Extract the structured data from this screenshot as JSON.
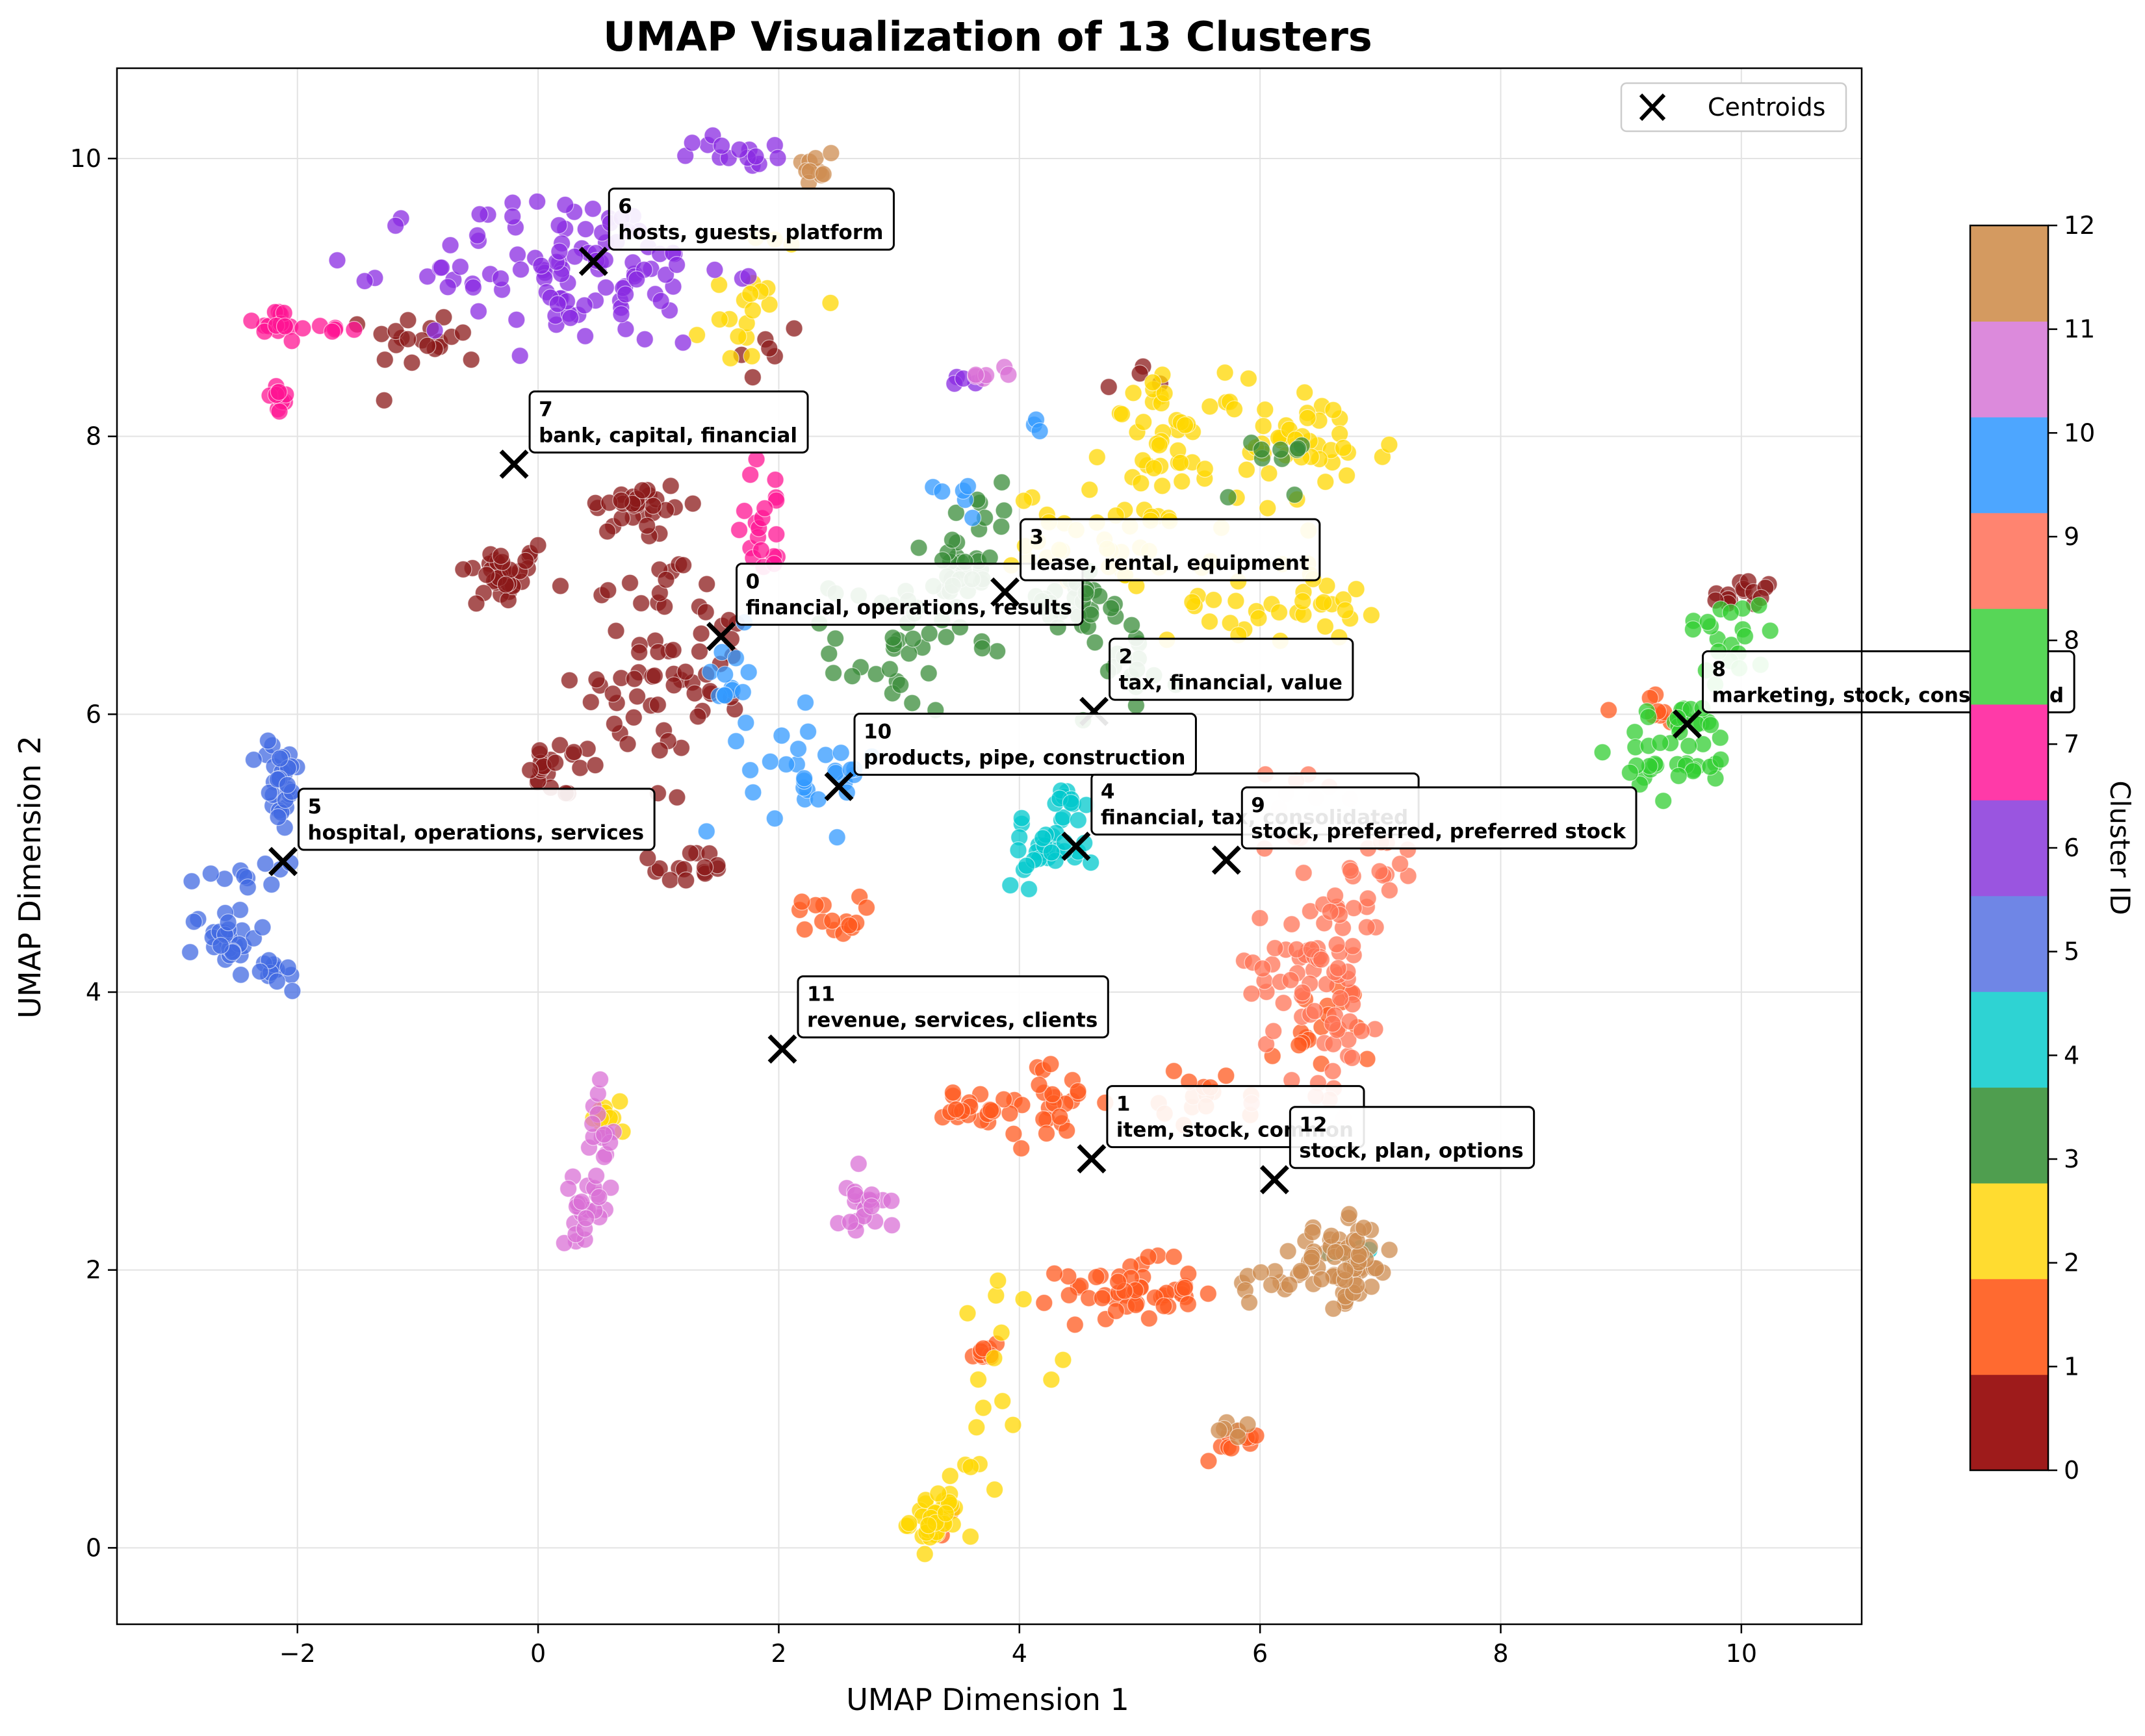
{
  "chart_data": {
    "type": "scatter",
    "title": "UMAP Visualization of 13 Clusters",
    "xlabel": "UMAP Dimension 1",
    "ylabel": "UMAP Dimension 2",
    "xlim": [
      -3.5,
      11.0
    ],
    "ylim": [
      -0.55,
      10.65
    ],
    "xticks": [
      -2,
      0,
      2,
      4,
      6,
      8,
      10
    ],
    "yticks": [
      0,
      2,
      4,
      6,
      8,
      10
    ],
    "xtick_labels": [
      "−2",
      "0",
      "2",
      "4",
      "6",
      "8",
      "10"
    ],
    "ytick_labels": [
      "0",
      "2",
      "4",
      "6",
      "8",
      "10"
    ],
    "grid": true,
    "legend": {
      "placement": "top-right",
      "entries": [
        "Centroids"
      ]
    },
    "colorbar": {
      "label": "Cluster ID",
      "ticks": [
        "0",
        "1",
        "2",
        "3",
        "4",
        "5",
        "6",
        "7",
        "8",
        "9",
        "10",
        "11",
        "12"
      ],
      "colors": [
        "#9e1b1b",
        "#ff6a30",
        "#ffdc30",
        "#4f9e4f",
        "#2ed3d3",
        "#6f86e6",
        "#9a55e0",
        "#ff3aa8",
        "#57d657",
        "#ff8470",
        "#4da6ff",
        "#dc8adc",
        "#d49a60"
      ]
    },
    "series": [
      {
        "cluster": 0,
        "color": "#8b1a1a",
        "blobs": [
          [
            -0.3,
            7.0,
            0.25,
            0.15,
            35
          ],
          [
            0.2,
            5.6,
            0.2,
            0.15,
            20
          ],
          [
            0.9,
            6.5,
            0.5,
            0.9,
            60
          ],
          [
            0.8,
            7.5,
            0.3,
            0.15,
            25
          ],
          [
            1.5,
            6.4,
            0.25,
            0.3,
            15
          ],
          [
            1.2,
            4.9,
            0.3,
            0.1,
            15
          ],
          [
            -0.9,
            8.7,
            0.35,
            0.15,
            20
          ],
          [
            1.9,
            8.6,
            0.2,
            0.2,
            6
          ],
          [
            10.0,
            6.85,
            0.2,
            0.1,
            15
          ],
          [
            5.0,
            8.4,
            0.2,
            0.1,
            4
          ]
        ]
      },
      {
        "cluster": 1,
        "color": "#ff5a1f",
        "blobs": [
          [
            4.9,
            1.85,
            0.4,
            0.15,
            50
          ],
          [
            3.7,
            1.4,
            0.1,
            0.1,
            10
          ],
          [
            3.4,
            0.2,
            0.1,
            0.1,
            8
          ],
          [
            4.2,
            3.2,
            0.35,
            0.2,
            30
          ],
          [
            3.6,
            3.15,
            0.25,
            0.1,
            15
          ],
          [
            5.6,
            3.25,
            0.3,
            0.15,
            15
          ],
          [
            2.4,
            4.55,
            0.2,
            0.1,
            15
          ],
          [
            5.8,
            0.75,
            0.2,
            0.1,
            10
          ],
          [
            6.5,
            3.7,
            0.3,
            0.3,
            20
          ],
          [
            9.2,
            6.05,
            0.25,
            0.1,
            8
          ]
        ]
      },
      {
        "cluster": 2,
        "color": "#ffd700",
        "blobs": [
          [
            3.3,
            0.2,
            0.15,
            0.15,
            35
          ],
          [
            5.3,
            8.0,
            0.4,
            0.3,
            45
          ],
          [
            6.4,
            7.9,
            0.5,
            0.3,
            40
          ],
          [
            4.8,
            7.25,
            0.6,
            0.25,
            40
          ],
          [
            6.1,
            6.8,
            0.6,
            0.2,
            35
          ],
          [
            1.8,
            9.0,
            0.3,
            0.4,
            20
          ],
          [
            0.6,
            3.1,
            0.1,
            0.15,
            10
          ],
          [
            3.9,
            1.5,
            0.3,
            0.4,
            12
          ],
          [
            3.6,
            0.7,
            0.1,
            0.3,
            6
          ]
        ]
      },
      {
        "cluster": 3,
        "color": "#3a8c3a",
        "blobs": [
          [
            3.0,
            6.5,
            0.4,
            0.35,
            40
          ],
          [
            3.5,
            7.0,
            0.2,
            0.25,
            25
          ],
          [
            4.4,
            6.8,
            0.35,
            0.15,
            25
          ],
          [
            4.9,
            6.4,
            0.3,
            0.3,
            20
          ],
          [
            6.1,
            7.9,
            0.25,
            0.25,
            10
          ],
          [
            3.8,
            7.5,
            0.2,
            0.15,
            8
          ]
        ]
      },
      {
        "cluster": 4,
        "color": "#00c8cc",
        "blobs": [
          [
            4.2,
            5.0,
            0.25,
            0.15,
            30
          ],
          [
            4.4,
            5.35,
            0.1,
            0.1,
            10
          ],
          [
            6.8,
            2.15,
            0.15,
            0.1,
            6
          ]
        ]
      },
      {
        "cluster": 5,
        "color": "#4169e1",
        "blobs": [
          [
            -2.15,
            5.5,
            0.12,
            0.25,
            30
          ],
          [
            -2.6,
            4.4,
            0.2,
            0.15,
            30
          ],
          [
            -2.15,
            4.15,
            0.12,
            0.1,
            12
          ],
          [
            -2.45,
            4.9,
            0.25,
            0.15,
            12
          ]
        ]
      },
      {
        "cluster": 6,
        "color": "#8a2be2",
        "blobs": [
          [
            0.3,
            9.2,
            0.9,
            0.4,
            110
          ],
          [
            1.7,
            10.05,
            0.3,
            0.08,
            15
          ],
          [
            3.5,
            8.4,
            0.15,
            0.05,
            4
          ]
        ]
      },
      {
        "cluster": 7,
        "color": "#ff1493",
        "blobs": [
          [
            -2.2,
            8.8,
            0.2,
            0.1,
            15
          ],
          [
            -2.15,
            8.25,
            0.08,
            0.08,
            10
          ],
          [
            1.9,
            7.4,
            0.2,
            0.3,
            20
          ],
          [
            -1.7,
            8.78,
            0.15,
            0.02,
            6
          ]
        ]
      },
      {
        "cluster": 8,
        "color": "#32cd32",
        "blobs": [
          [
            9.5,
            5.75,
            0.35,
            0.25,
            45
          ],
          [
            9.9,
            6.55,
            0.3,
            0.25,
            20
          ]
        ]
      },
      {
        "cluster": 9,
        "color": "#ff7355",
        "blobs": [
          [
            6.5,
            4.2,
            0.4,
            0.6,
            80
          ],
          [
            7.0,
            4.9,
            0.2,
            0.3,
            15
          ],
          [
            6.3,
            5.3,
            0.2,
            0.3,
            12
          ]
        ]
      },
      {
        "cluster": 10,
        "color": "#3399ff",
        "blobs": [
          [
            2.3,
            5.6,
            0.4,
            0.3,
            30
          ],
          [
            1.6,
            6.3,
            0.15,
            0.2,
            12
          ],
          [
            3.5,
            7.6,
            0.2,
            0.1,
            6
          ],
          [
            4.2,
            8.1,
            0.1,
            0.05,
            3
          ]
        ]
      },
      {
        "cluster": 11,
        "color": "#da70d6",
        "blobs": [
          [
            0.4,
            2.45,
            0.15,
            0.15,
            25
          ],
          [
            0.5,
            2.95,
            0.1,
            0.25,
            15
          ],
          [
            2.7,
            2.5,
            0.15,
            0.2,
            20
          ],
          [
            3.7,
            8.45,
            0.15,
            0.05,
            6
          ]
        ]
      },
      {
        "cluster": 12,
        "color": "#cd8c50",
        "blobs": [
          [
            6.7,
            2.05,
            0.3,
            0.2,
            60
          ],
          [
            6.2,
            1.95,
            0.3,
            0.15,
            15
          ],
          [
            5.8,
            0.85,
            0.1,
            0.05,
            6
          ],
          [
            2.3,
            9.95,
            0.12,
            0.1,
            10
          ]
        ]
      }
    ],
    "centroids": [
      {
        "id": "0",
        "keywords": "financial, operations, results",
        "x": 1.52,
        "y": 6.56
      },
      {
        "id": "1",
        "keywords": "item, stock, common",
        "x": 4.6,
        "y": 2.8
      },
      {
        "id": "2",
        "keywords": "tax, financial, value",
        "x": 4.62,
        "y": 6.02
      },
      {
        "id": "3",
        "keywords": "lease, rental, equipment",
        "x": 3.88,
        "y": 6.88
      },
      {
        "id": "4",
        "keywords": "financial, tax, consolidated",
        "x": 4.47,
        "y": 5.05
      },
      {
        "id": "5",
        "keywords": "hospital, operations, services",
        "x": -2.12,
        "y": 4.94
      },
      {
        "id": "6",
        "keywords": "hosts, guests, platform",
        "x": 0.46,
        "y": 9.26
      },
      {
        "id": "7",
        "keywords": "bank, capital, financial",
        "x": -0.2,
        "y": 7.8
      },
      {
        "id": "8",
        "keywords": "marketing, stock, consolidated",
        "x": 9.55,
        "y": 5.93
      },
      {
        "id": "9",
        "keywords": "stock, preferred, preferred stock",
        "x": 5.72,
        "y": 4.95
      },
      {
        "id": "10",
        "keywords": "products, pipe, construction",
        "x": 2.5,
        "y": 5.48
      },
      {
        "id": "11",
        "keywords": "revenue, services, clients",
        "x": 2.03,
        "y": 3.59
      },
      {
        "id": "12",
        "keywords": "stock, plan, options",
        "x": 6.12,
        "y": 2.65
      }
    ]
  }
}
